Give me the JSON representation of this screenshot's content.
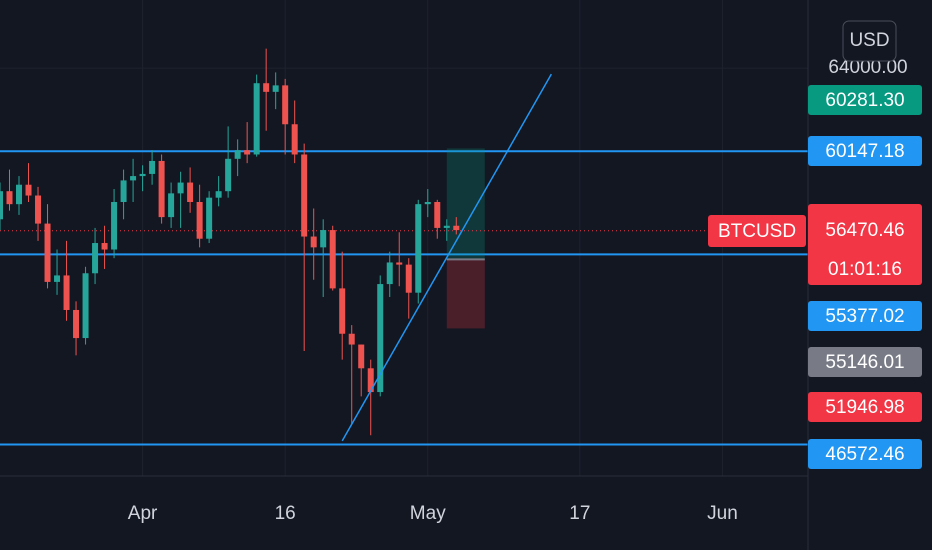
{
  "chart_data": {
    "type": "candlestick",
    "symbol": "BTCUSD",
    "currency": "USD",
    "countdown": "01:01:16",
    "x": [
      "03-17",
      "03-18",
      "03-19",
      "03-20",
      "03-21",
      "03-22",
      "03-23",
      "03-24",
      "03-25",
      "03-26",
      "03-27",
      "03-28",
      "03-29",
      "03-30",
      "03-31",
      "04-01",
      "04-02",
      "04-03",
      "04-04",
      "04-05",
      "04-06",
      "04-07",
      "04-08",
      "04-09",
      "04-10",
      "04-11",
      "04-12",
      "04-13",
      "04-14",
      "04-15",
      "04-16",
      "04-17",
      "04-18",
      "04-19",
      "04-20",
      "04-21",
      "04-22",
      "04-23",
      "04-24",
      "04-25",
      "04-26",
      "04-27",
      "04-28",
      "04-29",
      "04-30",
      "05-01",
      "05-02",
      "05-03",
      "05-04"
    ],
    "open": [
      57000,
      58300,
      57700,
      58600,
      58100,
      56800,
      54100,
      54400,
      52800,
      51500,
      54500,
      55900,
      55600,
      57800,
      58800,
      59000,
      59100,
      59700,
      57100,
      58200,
      58700,
      57800,
      56100,
      58000,
      58300,
      59800,
      60200,
      60000,
      63300,
      62900,
      63200,
      61400,
      60000,
      56200,
      55700,
      56500,
      53800,
      51700,
      51200,
      50100,
      49000,
      54000,
      55000,
      54900,
      53600,
      57700,
      57800,
      56600,
      56700
    ],
    "high": [
      58700,
      59300,
      59000,
      59600,
      58500,
      57700,
      55600,
      56000,
      53200,
      54800,
      56600,
      56700,
      58400,
      59300,
      59800,
      59500,
      60200,
      60000,
      58700,
      59200,
      59400,
      58600,
      58300,
      59000,
      61300,
      60700,
      61500,
      63700,
      64900,
      63800,
      63500,
      62500,
      60500,
      57500,
      57000,
      56700,
      55500,
      52100,
      51200,
      50500,
      54400,
      55500,
      56400,
      55200,
      57900,
      58400,
      57900,
      57000,
      57100
    ],
    "low": [
      56500,
      57400,
      57200,
      57800,
      56000,
      53800,
      53500,
      52300,
      50700,
      51200,
      54000,
      54700,
      55200,
      57000,
      57800,
      58300,
      58600,
      56800,
      56600,
      56600,
      57300,
      55700,
      55900,
      57600,
      58000,
      59000,
      59600,
      59900,
      61100,
      62100,
      60000,
      59600,
      50900,
      54200,
      53400,
      53700,
      50500,
      47500,
      48800,
      47000,
      48800,
      53400,
      53900,
      52400,
      53100,
      57100,
      56100,
      56000,
      56300
    ],
    "close": [
      58300,
      57700,
      58600,
      58100,
      56800,
      54100,
      54400,
      52800,
      51500,
      54500,
      55900,
      55600,
      57800,
      58800,
      59000,
      59100,
      59700,
      57100,
      58200,
      58700,
      57800,
      56100,
      58000,
      58300,
      59800,
      60200,
      60000,
      63300,
      62900,
      63200,
      61400,
      60000,
      56200,
      55700,
      56500,
      53800,
      51700,
      51200,
      50100,
      49000,
      54000,
      55000,
      54900,
      53600,
      57700,
      57800,
      56600,
      56700,
      56500
    ],
    "up_color": "#26a69a",
    "down_color": "#ef5350",
    "xlim": [
      "03-17",
      "06-10"
    ],
    "xticks": [
      {
        "value": "04-01",
        "label": "Apr"
      },
      {
        "value": "04-16",
        "label": "16"
      },
      {
        "value": "05-01",
        "label": "May"
      },
      {
        "value": "05-17",
        "label": "17"
      },
      {
        "value": "06-01",
        "label": "Jun"
      }
    ],
    "ylim": [
      45113,
      67153
    ],
    "yticks": [
      {
        "value": 64000,
        "label": "64000.00"
      }
    ],
    "grid": true,
    "price_lines": [
      {
        "value": 60147.18,
        "color": "#2196f3"
      },
      {
        "value": 55377.02,
        "color": "#2196f3"
      },
      {
        "value": 46572.46,
        "color": "#2196f3"
      }
    ],
    "last_price": {
      "value": 56470.46,
      "color": "#f23645"
    },
    "position": {
      "x": [
        "05-03",
        "05-07"
      ],
      "target": {
        "value": 60281.3,
        "label": "60281.30"
      },
      "entry": 55146.01,
      "stop": 51946.98,
      "target_color": "#089981",
      "entry_color": "#787b86",
      "stop_color": "#f23645"
    },
    "trendline": {
      "x": [
        "04-22",
        "05-14"
      ],
      "y": [
        46740,
        63720
      ],
      "color": "#2196f3"
    }
  }
}
